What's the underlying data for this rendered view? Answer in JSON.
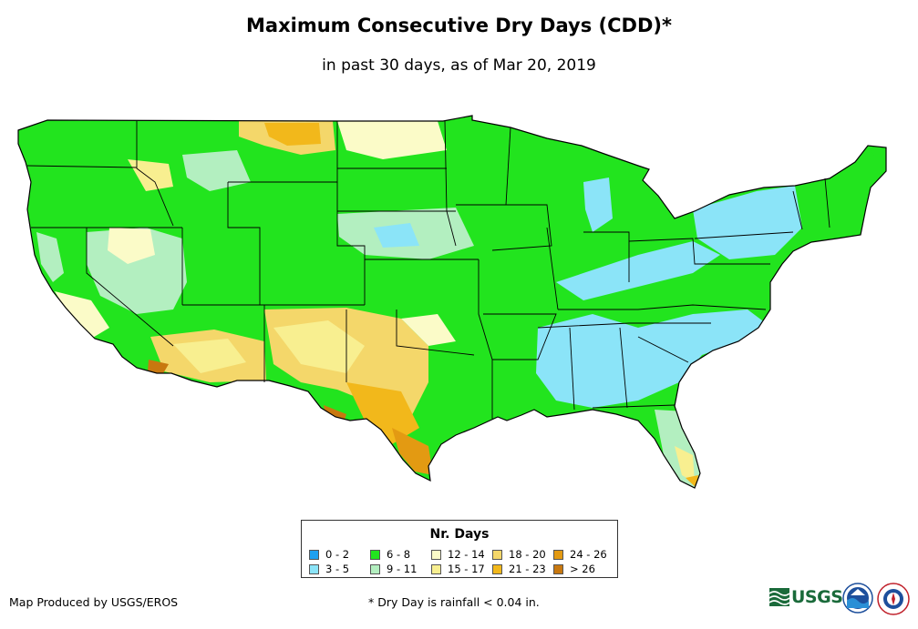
{
  "title": "Maximum Consecutive Dry Days (CDD)*",
  "subtitle": "in past 30 days, as of Mar 20, 2019",
  "legend": {
    "title": "Nr. Days",
    "items": [
      {
        "label": "0 - 2",
        "color": "#1ea0ef"
      },
      {
        "label": "3 - 5",
        "color": "#8be4f8"
      },
      {
        "label": "6 - 8",
        "color": "#22e41e"
      },
      {
        "label": "9 - 11",
        "color": "#b3efc0"
      },
      {
        "label": "12 - 14",
        "color": "#fbfbc8"
      },
      {
        "label": "15 - 17",
        "color": "#f8ef90"
      },
      {
        "label": "18 - 20",
        "color": "#f4d76a"
      },
      {
        "label": "21 - 23",
        "color": "#f2b81b"
      },
      {
        "label": "24 - 26",
        "color": "#e39a12"
      },
      {
        "label": "> 26",
        "color": "#c8780f"
      }
    ]
  },
  "footer": {
    "producer": "Map Produced by USGS/EROS",
    "note": "* Dry Day is rainfall < 0.04 in."
  },
  "logos": {
    "usgs_text": "USGS",
    "usgs_icon": "usgs-waves-icon",
    "noaa_icon": "noaa-seal-icon",
    "nws_icon": "nws-seal-icon"
  }
}
